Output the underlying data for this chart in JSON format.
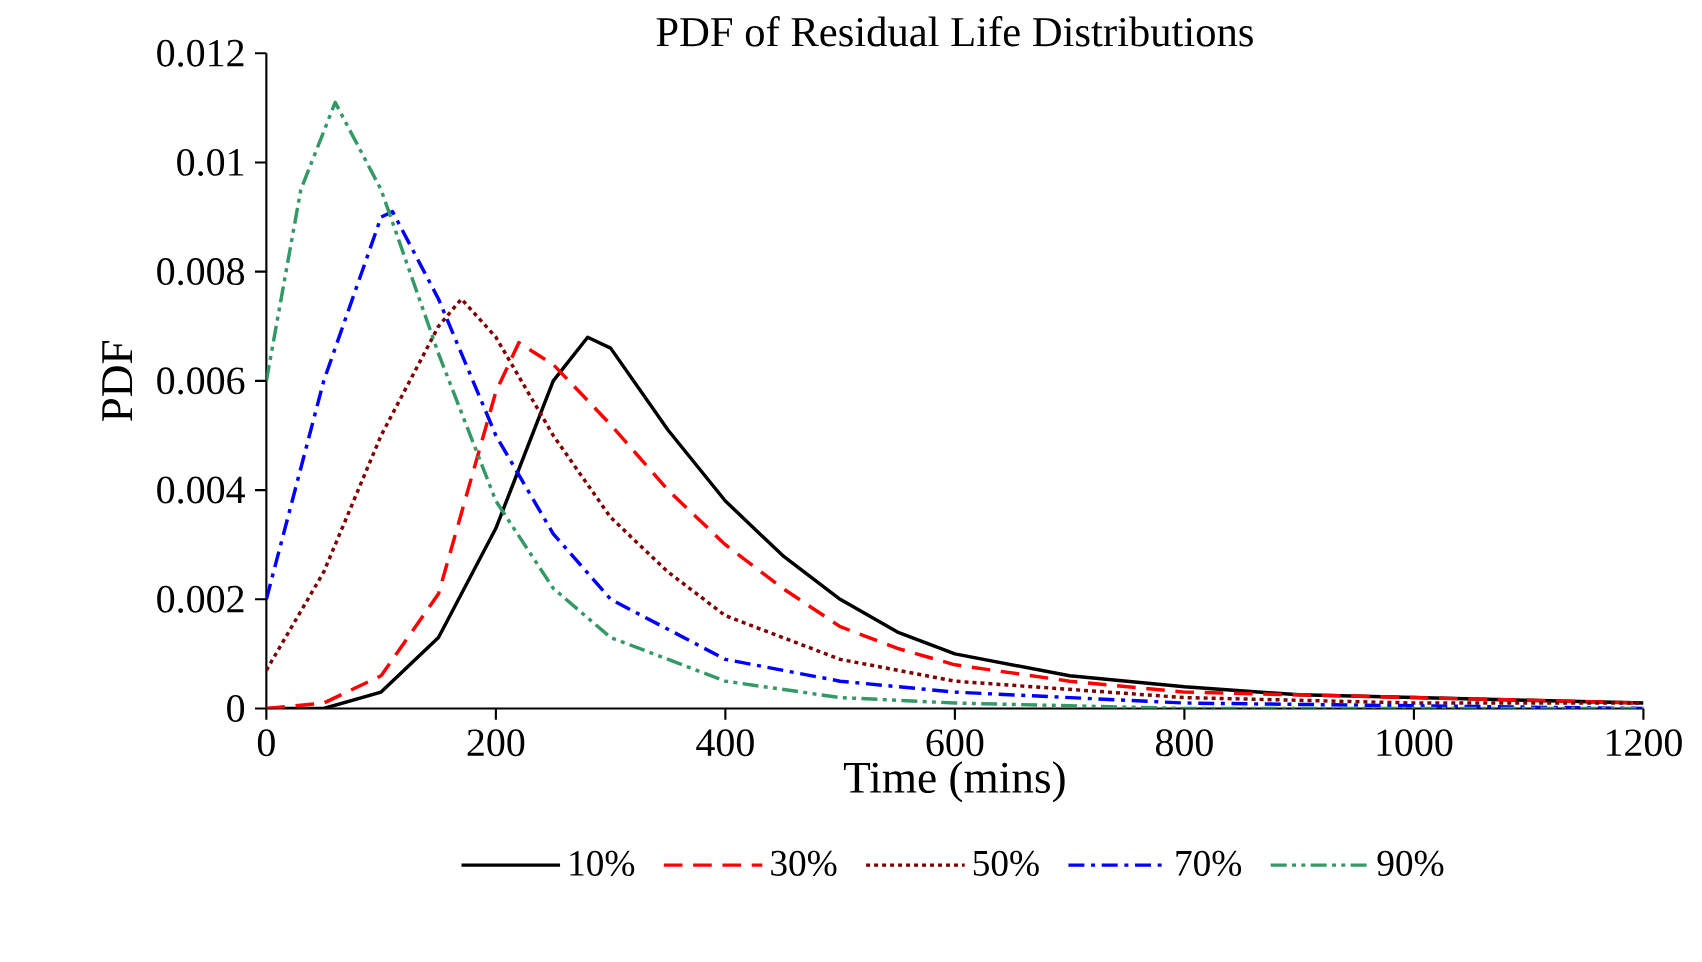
{
  "chart_data": {
    "type": "line",
    "title": "PDF of Residual Life Distributions",
    "xlabel": "Time (mins)",
    "ylabel": "PDF",
    "xlim": [
      0,
      1200
    ],
    "ylim": [
      0,
      0.012
    ],
    "xticks": [
      0,
      200,
      400,
      600,
      800,
      1000,
      1200
    ],
    "yticks": [
      0,
      0.002,
      0.004,
      0.006,
      0.008,
      0.01,
      0.012
    ],
    "grid": false,
    "legend": "bottom",
    "marker": "none",
    "series": [
      {
        "name": "10%",
        "color": "#000000",
        "line_style": "solid",
        "x": [
          0,
          50,
          100,
          150,
          200,
          250,
          280,
          300,
          350,
          400,
          450,
          500,
          550,
          600,
          700,
          800,
          900,
          1000,
          1100,
          1200
        ],
        "values": [
          0,
          0,
          0.0003,
          0.0013,
          0.0033,
          0.006,
          0.0068,
          0.0066,
          0.0051,
          0.0038,
          0.0028,
          0.002,
          0.0014,
          0.001,
          0.0006,
          0.0004,
          0.00025,
          0.0002,
          0.00015,
          0.0001
        ]
      },
      {
        "name": "30%",
        "color": "#ff0000",
        "line_style": "dashed",
        "x": [
          0,
          50,
          100,
          150,
          200,
          220,
          250,
          300,
          350,
          400,
          450,
          500,
          550,
          600,
          700,
          800,
          1000,
          1200
        ],
        "values": [
          0,
          0.0001,
          0.0006,
          0.0021,
          0.0058,
          0.0067,
          0.0063,
          0.0052,
          0.004,
          0.003,
          0.0022,
          0.0015,
          0.0011,
          0.0008,
          0.0005,
          0.0003,
          0.0002,
          0.0001
        ]
      },
      {
        "name": "50%",
        "color": "#800000",
        "line_style": "dotted",
        "x": [
          0,
          50,
          100,
          150,
          170,
          200,
          250,
          300,
          350,
          400,
          500,
          600,
          800,
          1000,
          1200
        ],
        "values": [
          0.0007,
          0.0025,
          0.005,
          0.007,
          0.0075,
          0.0068,
          0.005,
          0.0035,
          0.0025,
          0.0017,
          0.0009,
          0.0005,
          0.0002,
          0.0001,
          0.0001
        ]
      },
      {
        "name": "70%",
        "color": "#0000ff",
        "line_style": "dashdot",
        "x": [
          0,
          50,
          100,
          110,
          150,
          200,
          250,
          300,
          400,
          500,
          600,
          800,
          1200
        ],
        "values": [
          0.002,
          0.006,
          0.009,
          0.0091,
          0.0075,
          0.005,
          0.0032,
          0.002,
          0.0009,
          0.0005,
          0.0003,
          0.0001,
          0
        ]
      },
      {
        "name": "90%",
        "color": "#339966",
        "line_style": "dashdotdot",
        "x": [
          0,
          30,
          60,
          100,
          150,
          200,
          250,
          300,
          400,
          500,
          600,
          800,
          1200
        ],
        "values": [
          0.006,
          0.0095,
          0.0111,
          0.0095,
          0.0065,
          0.0038,
          0.0022,
          0.0013,
          0.0005,
          0.0002,
          0.0001,
          0,
          0
        ]
      }
    ]
  }
}
